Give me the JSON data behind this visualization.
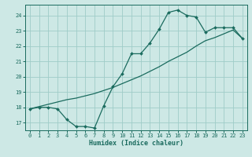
{
  "xlabel": "Humidex (Indice chaleur)",
  "ylabel": "",
  "background_color": "#cde8e5",
  "grid_color": "#9fccc8",
  "line_color": "#1a6b5e",
  "xlim": [
    -0.5,
    23.5
  ],
  "ylim": [
    16.5,
    24.7
  ],
  "xticks": [
    0,
    1,
    2,
    3,
    4,
    5,
    6,
    7,
    8,
    9,
    10,
    11,
    12,
    13,
    14,
    15,
    16,
    17,
    18,
    19,
    20,
    21,
    22,
    23
  ],
  "yticks": [
    17,
    18,
    19,
    20,
    21,
    22,
    23,
    24
  ],
  "line1_x": [
    0,
    1,
    2,
    3,
    4,
    5,
    6,
    7,
    8,
    9,
    10,
    11,
    12,
    13,
    14,
    15,
    16,
    17,
    18,
    19,
    20,
    21,
    22,
    23
  ],
  "line1_y": [
    17.9,
    18.0,
    18.0,
    17.9,
    17.2,
    16.75,
    16.75,
    16.65,
    18.1,
    19.35,
    20.2,
    21.5,
    21.5,
    22.2,
    23.1,
    24.2,
    24.35,
    24.0,
    23.9,
    22.9,
    23.2,
    23.2,
    23.2,
    22.5
  ],
  "line2_x": [
    0,
    1,
    2,
    3,
    4,
    5,
    6,
    7,
    8,
    9,
    10,
    11,
    12,
    13,
    14,
    15,
    16,
    17,
    18,
    19,
    20,
    21,
    22,
    23
  ],
  "line2_y": [
    17.9,
    18.05,
    18.2,
    18.35,
    18.5,
    18.6,
    18.75,
    18.9,
    19.1,
    19.3,
    19.55,
    19.8,
    20.05,
    20.35,
    20.65,
    21.0,
    21.3,
    21.6,
    22.0,
    22.35,
    22.55,
    22.8,
    23.05,
    22.5
  ]
}
